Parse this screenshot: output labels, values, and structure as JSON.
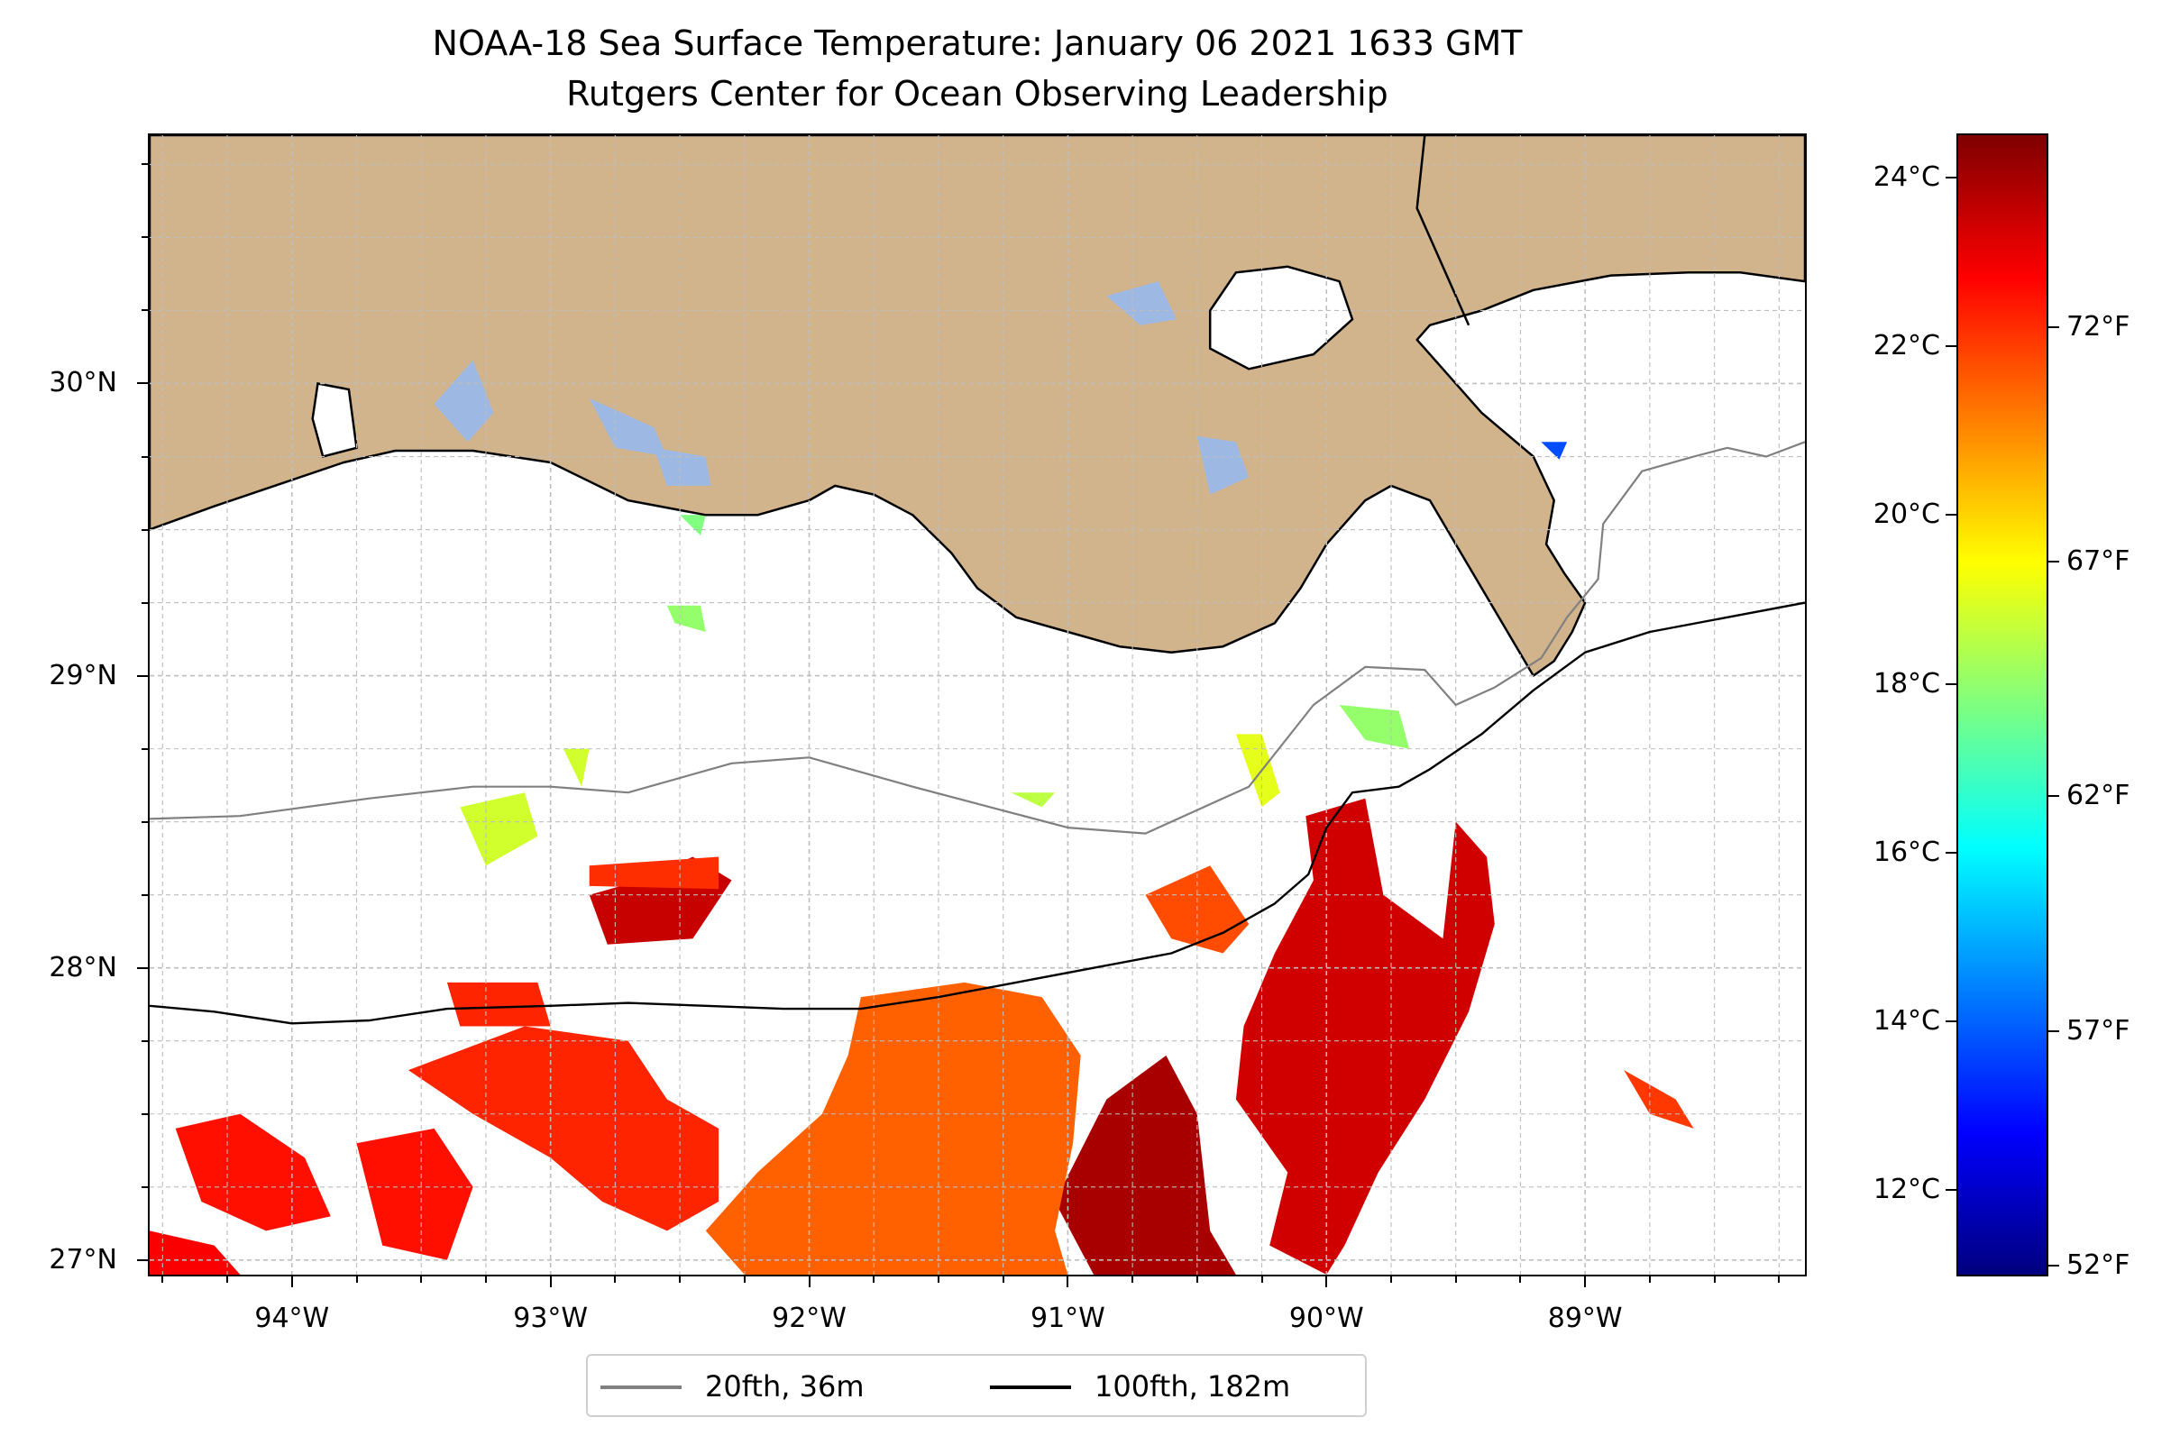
{
  "title": {
    "line1": "NOAA-18 Sea Surface Temperature: January 06 2021 1633 GMT",
    "line2": "Rutgers Center for Ocean Observing Leadership"
  },
  "map": {
    "lon_range": [
      -94.55,
      -88.15
    ],
    "lat_range": [
      26.95,
      30.85
    ],
    "land_color": "#d2b48c",
    "lake_color": "#9db9e3",
    "gridlines": true,
    "lat_ticks": [
      {
        "value": 30,
        "label": "30°N"
      },
      {
        "value": 29,
        "label": "29°N"
      },
      {
        "value": 28,
        "label": "28°N"
      },
      {
        "value": 27,
        "label": "27°N"
      }
    ],
    "lon_ticks": [
      {
        "value": -94,
        "label": "94°W"
      },
      {
        "value": -93,
        "label": "93°W"
      },
      {
        "value": -92,
        "label": "92°W"
      },
      {
        "value": -91,
        "label": "91°W"
      },
      {
        "value": -90,
        "label": "90°W"
      },
      {
        "value": -89,
        "label": "89°W"
      }
    ],
    "lines": [
      {
        "name": "20fth, 36m",
        "color": "#808080",
        "points": [
          [
            -94.55,
            28.51
          ],
          [
            -94.2,
            28.52
          ],
          [
            -93.7,
            28.58
          ],
          [
            -93.3,
            28.62
          ],
          [
            -93.0,
            28.62
          ],
          [
            -92.7,
            28.6
          ],
          [
            -92.3,
            28.7
          ],
          [
            -92.0,
            28.72
          ],
          [
            -91.6,
            28.62
          ],
          [
            -91.3,
            28.55
          ],
          [
            -91.0,
            28.48
          ],
          [
            -90.7,
            28.46
          ],
          [
            -90.3,
            28.62
          ],
          [
            -90.05,
            28.9
          ],
          [
            -89.85,
            29.03
          ],
          [
            -89.62,
            29.02
          ],
          [
            -89.5,
            28.9
          ],
          [
            -89.35,
            28.96
          ],
          [
            -89.17,
            29.06
          ],
          [
            -89.07,
            29.2
          ],
          [
            -88.95,
            29.33
          ],
          [
            -88.93,
            29.52
          ],
          [
            -88.78,
            29.7
          ],
          [
            -88.58,
            29.75
          ],
          [
            -88.45,
            29.78
          ],
          [
            -88.3,
            29.75
          ],
          [
            -88.15,
            29.8
          ]
        ]
      },
      {
        "name": "100fth, 182m",
        "color": "#000000",
        "points": [
          [
            -94.55,
            27.87
          ],
          [
            -94.3,
            27.85
          ],
          [
            -94.0,
            27.81
          ],
          [
            -93.7,
            27.82
          ],
          [
            -93.4,
            27.86
          ],
          [
            -93.0,
            27.87
          ],
          [
            -92.7,
            27.88
          ],
          [
            -92.4,
            27.87
          ],
          [
            -92.1,
            27.86
          ],
          [
            -91.8,
            27.86
          ],
          [
            -91.5,
            27.9
          ],
          [
            -91.2,
            27.95
          ],
          [
            -90.9,
            28.0
          ],
          [
            -90.6,
            28.05
          ],
          [
            -90.4,
            28.12
          ],
          [
            -90.2,
            28.22
          ],
          [
            -90.07,
            28.32
          ],
          [
            -90.0,
            28.48
          ],
          [
            -89.9,
            28.6
          ],
          [
            -89.72,
            28.62
          ],
          [
            -89.6,
            28.68
          ],
          [
            -89.4,
            28.8
          ],
          [
            -89.2,
            28.95
          ],
          [
            -89.0,
            29.08
          ],
          [
            -88.75,
            29.15
          ],
          [
            -88.45,
            29.2
          ],
          [
            -88.15,
            29.25
          ]
        ]
      }
    ],
    "sst_patches": [
      {
        "level": 0.92,
        "points": [
          [
            -90.08,
            28.52
          ],
          [
            -89.85,
            28.58
          ],
          [
            -89.78,
            28.25
          ],
          [
            -89.55,
            28.1
          ],
          [
            -89.5,
            28.5
          ],
          [
            -89.38,
            28.38
          ],
          [
            -89.35,
            28.15
          ],
          [
            -89.45,
            27.85
          ],
          [
            -89.62,
            27.55
          ],
          [
            -89.8,
            27.3
          ],
          [
            -89.93,
            27.05
          ],
          [
            -90.0,
            26.95
          ],
          [
            -90.22,
            27.05
          ],
          [
            -90.15,
            27.3
          ],
          [
            -90.35,
            27.55
          ],
          [
            -90.32,
            27.8
          ],
          [
            -90.2,
            28.05
          ],
          [
            -90.05,
            28.3
          ]
        ]
      },
      {
        "level": 0.8,
        "points": [
          [
            -90.7,
            28.25
          ],
          [
            -90.45,
            28.35
          ],
          [
            -90.3,
            28.15
          ],
          [
            -90.4,
            28.05
          ],
          [
            -90.6,
            28.1
          ]
        ]
      },
      {
        "level": 0.96,
        "points": [
          [
            -90.85,
            27.55
          ],
          [
            -90.62,
            27.7
          ],
          [
            -90.5,
            27.5
          ],
          [
            -90.45,
            27.1
          ],
          [
            -90.35,
            26.95
          ],
          [
            -90.9,
            26.95
          ],
          [
            -91.05,
            27.2
          ]
        ]
      },
      {
        "level": 0.78,
        "points": [
          [
            -91.8,
            27.9
          ],
          [
            -91.4,
            27.95
          ],
          [
            -91.1,
            27.9
          ],
          [
            -90.95,
            27.7
          ],
          [
            -90.98,
            27.4
          ],
          [
            -91.05,
            27.1
          ],
          [
            -91.0,
            26.95
          ],
          [
            -92.25,
            26.95
          ],
          [
            -92.4,
            27.1
          ],
          [
            -92.2,
            27.3
          ],
          [
            -91.95,
            27.5
          ],
          [
            -91.85,
            27.7
          ]
        ]
      },
      {
        "level": 0.84,
        "points": [
          [
            -93.1,
            27.8
          ],
          [
            -92.7,
            27.75
          ],
          [
            -92.55,
            27.55
          ],
          [
            -92.35,
            27.45
          ],
          [
            -92.35,
            27.2
          ],
          [
            -92.55,
            27.1
          ],
          [
            -92.8,
            27.2
          ],
          [
            -93.0,
            27.35
          ],
          [
            -93.3,
            27.5
          ],
          [
            -93.55,
            27.65
          ]
        ]
      },
      {
        "level": 0.93,
        "points": [
          [
            -92.78,
            28.08
          ],
          [
            -92.45,
            28.1
          ],
          [
            -92.3,
            28.3
          ],
          [
            -92.45,
            28.38
          ],
          [
            -92.65,
            28.3
          ],
          [
            -92.85,
            28.25
          ]
        ]
      },
      {
        "level": 0.83,
        "points": [
          [
            -92.85,
            28.35
          ],
          [
            -92.35,
            28.38
          ],
          [
            -92.35,
            28.27
          ],
          [
            -92.85,
            28.28
          ]
        ]
      },
      {
        "level": 0.84,
        "points": [
          [
            -93.4,
            27.95
          ],
          [
            -93.05,
            27.95
          ],
          [
            -93.0,
            27.8
          ],
          [
            -93.35,
            27.8
          ]
        ]
      },
      {
        "level": 0.86,
        "points": [
          [
            -94.45,
            27.45
          ],
          [
            -94.2,
            27.5
          ],
          [
            -93.95,
            27.35
          ],
          [
            -93.85,
            27.15
          ],
          [
            -94.1,
            27.1
          ],
          [
            -94.35,
            27.2
          ]
        ]
      },
      {
        "level": 0.88,
        "points": [
          [
            -94.55,
            27.1
          ],
          [
            -94.3,
            27.05
          ],
          [
            -94.2,
            26.95
          ],
          [
            -94.55,
            26.95
          ]
        ]
      },
      {
        "level": 0.86,
        "points": [
          [
            -93.75,
            27.4
          ],
          [
            -93.45,
            27.45
          ],
          [
            -93.3,
            27.25
          ],
          [
            -93.4,
            27.0
          ],
          [
            -93.65,
            27.05
          ]
        ]
      },
      {
        "level": 0.58,
        "points": [
          [
            -93.35,
            28.55
          ],
          [
            -93.1,
            28.6
          ],
          [
            -93.05,
            28.45
          ],
          [
            -93.25,
            28.35
          ]
        ]
      },
      {
        "level": 0.58,
        "points": [
          [
            -92.95,
            28.75
          ],
          [
            -92.85,
            28.75
          ],
          [
            -92.88,
            28.62
          ]
        ]
      },
      {
        "level": 0.52,
        "points": [
          [
            -92.55,
            29.24
          ],
          [
            -92.42,
            29.24
          ],
          [
            -92.4,
            29.15
          ],
          [
            -92.52,
            29.18
          ]
        ]
      },
      {
        "level": 0.5,
        "points": [
          [
            -92.5,
            29.55
          ],
          [
            -92.4,
            29.55
          ],
          [
            -92.42,
            29.48
          ]
        ]
      },
      {
        "level": 0.56,
        "points": [
          [
            -91.22,
            28.6
          ],
          [
            -91.05,
            28.6
          ],
          [
            -91.1,
            28.55
          ]
        ]
      },
      {
        "level": 0.6,
        "points": [
          [
            -90.35,
            28.8
          ],
          [
            -90.25,
            28.8
          ],
          [
            -90.18,
            28.6
          ],
          [
            -90.25,
            28.55
          ]
        ]
      },
      {
        "level": 0.52,
        "points": [
          [
            -89.95,
            28.9
          ],
          [
            -89.72,
            28.88
          ],
          [
            -89.68,
            28.75
          ],
          [
            -89.85,
            28.78
          ]
        ]
      },
      {
        "level": 0.82,
        "points": [
          [
            -88.85,
            27.65
          ],
          [
            -88.65,
            27.55
          ],
          [
            -88.58,
            27.45
          ],
          [
            -88.75,
            27.5
          ]
        ]
      },
      {
        "level": 0.2,
        "points": [
          [
            -89.17,
            29.8
          ],
          [
            -89.07,
            29.8
          ],
          [
            -89.1,
            29.74
          ]
        ]
      }
    ],
    "coastline": [
      [
        -94.55,
        29.5
      ],
      [
        -94.3,
        29.58
      ],
      [
        -94.0,
        29.67
      ],
      [
        -93.8,
        29.73
      ],
      [
        -93.6,
        29.77
      ],
      [
        -93.3,
        29.77
      ],
      [
        -93.0,
        29.73
      ],
      [
        -92.7,
        29.6
      ],
      [
        -92.4,
        29.55
      ],
      [
        -92.2,
        29.55
      ],
      [
        -92.0,
        29.6
      ],
      [
        -91.9,
        29.65
      ],
      [
        -91.75,
        29.62
      ],
      [
        -91.6,
        29.55
      ],
      [
        -91.45,
        29.42
      ],
      [
        -91.35,
        29.3
      ],
      [
        -91.2,
        29.2
      ],
      [
        -91.0,
        29.15
      ],
      [
        -90.8,
        29.1
      ],
      [
        -90.6,
        29.08
      ],
      [
        -90.4,
        29.1
      ],
      [
        -90.2,
        29.18
      ],
      [
        -90.1,
        29.3
      ],
      [
        -90.0,
        29.45
      ],
      [
        -89.85,
        29.6
      ],
      [
        -89.75,
        29.65
      ],
      [
        -89.6,
        29.6
      ],
      [
        -89.5,
        29.45
      ],
      [
        -89.4,
        29.3
      ],
      [
        -89.3,
        29.15
      ],
      [
        -89.2,
        29.0
      ],
      [
        -89.12,
        29.05
      ],
      [
        -89.05,
        29.15
      ],
      [
        -89.0,
        29.25
      ],
      [
        -89.08,
        29.35
      ],
      [
        -89.15,
        29.45
      ],
      [
        -89.12,
        29.6
      ],
      [
        -89.2,
        29.75
      ],
      [
        -89.4,
        29.9
      ],
      [
        -89.55,
        30.05
      ],
      [
        -89.65,
        30.15
      ],
      [
        -89.6,
        30.2
      ],
      [
        -89.4,
        30.25
      ],
      [
        -89.2,
        30.32
      ],
      [
        -88.9,
        30.37
      ],
      [
        -88.6,
        30.38
      ],
      [
        -88.4,
        30.38
      ],
      [
        -88.15,
        30.35
      ],
      [
        -88.15,
        30.85
      ],
      [
        -94.55,
        30.85
      ]
    ],
    "lakes": [
      {
        "kind": "land-water",
        "points": [
          [
            -90.45,
            30.25
          ],
          [
            -90.35,
            30.38
          ],
          [
            -90.15,
            30.4
          ],
          [
            -89.95,
            30.35
          ],
          [
            -89.9,
            30.22
          ],
          [
            -90.05,
            30.1
          ],
          [
            -90.3,
            30.05
          ],
          [
            -90.45,
            30.12
          ]
        ]
      },
      {
        "kind": "land-water",
        "points": [
          [
            -93.9,
            30.0
          ],
          [
            -93.78,
            29.98
          ],
          [
            -93.75,
            29.78
          ],
          [
            -93.88,
            29.75
          ],
          [
            -93.92,
            29.88
          ]
        ]
      },
      {
        "kind": "inland-water",
        "points": [
          [
            -93.45,
            29.93
          ],
          [
            -93.3,
            30.08
          ],
          [
            -93.22,
            29.9
          ],
          [
            -93.32,
            29.8
          ]
        ]
      },
      {
        "kind": "inland-water",
        "points": [
          [
            -92.85,
            29.95
          ],
          [
            -92.6,
            29.85
          ],
          [
            -92.55,
            29.75
          ],
          [
            -92.75,
            29.78
          ]
        ]
      },
      {
        "kind": "inland-water",
        "points": [
          [
            -92.6,
            29.78
          ],
          [
            -92.4,
            29.75
          ],
          [
            -92.38,
            29.65
          ],
          [
            -92.55,
            29.65
          ]
        ]
      },
      {
        "kind": "inland-water",
        "points": [
          [
            -90.85,
            30.3
          ],
          [
            -90.65,
            30.35
          ],
          [
            -90.58,
            30.22
          ],
          [
            -90.72,
            30.2
          ]
        ]
      },
      {
        "kind": "inland-water",
        "points": [
          [
            -90.5,
            29.82
          ],
          [
            -90.35,
            29.8
          ],
          [
            -90.3,
            29.68
          ],
          [
            -90.45,
            29.62
          ]
        ]
      }
    ],
    "state_border": [
      [
        -89.62,
        30.85
      ],
      [
        -89.65,
        30.6
      ],
      [
        -89.55,
        30.4
      ],
      [
        -89.45,
        30.2
      ]
    ]
  },
  "colorbar": {
    "colormap": "jet",
    "range_c": [
      11.0,
      24.5
    ],
    "celsius_ticks": [
      "24°C",
      "22°C",
      "20°C",
      "18°C",
      "16°C",
      "14°C",
      "12°C"
    ],
    "celsius_values": [
      24,
      22,
      20,
      18,
      16,
      14,
      12
    ],
    "fahrenheit_ticks": [
      "72°F",
      "67°F",
      "62°F",
      "57°F",
      "52°F"
    ],
    "fahrenheit_values": [
      72,
      67,
      62,
      57,
      52
    ]
  },
  "legend": {
    "items": [
      {
        "label": "20fth, 36m",
        "color": "#808080"
      },
      {
        "label": "100fth, 182m",
        "color": "#000000"
      }
    ]
  }
}
